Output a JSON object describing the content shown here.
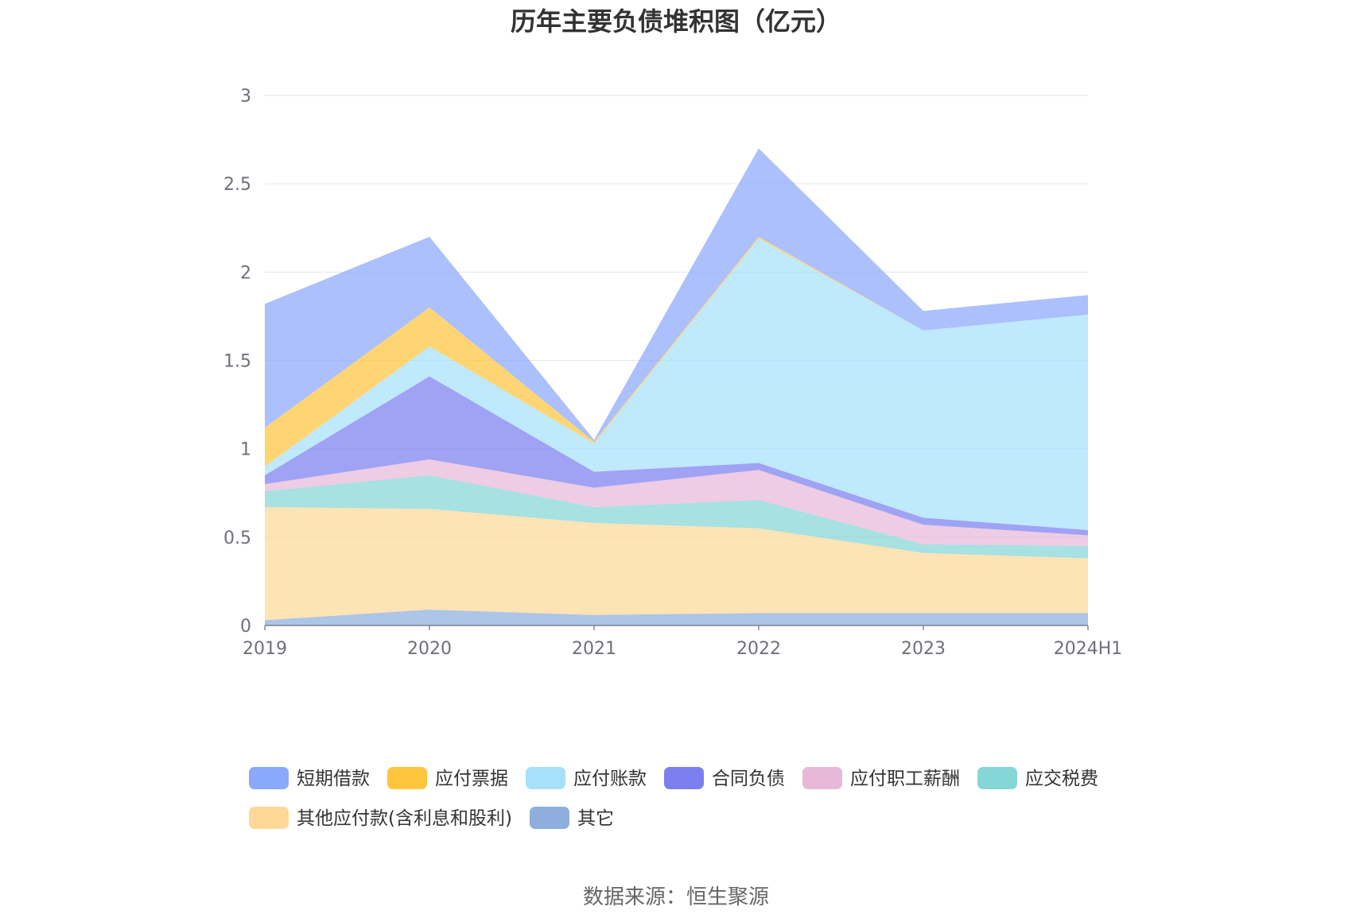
{
  "chart_data": {
    "type": "area",
    "stacked": true,
    "title": "历年主要负债堆积图（亿元）",
    "categories": [
      "2019",
      "2020",
      "2021",
      "2022",
      "2023",
      "2024H1"
    ],
    "ylim": [
      0,
      3
    ],
    "yticks": [
      "0",
      "0.5",
      "1",
      "1.5",
      "2",
      "2.5",
      "3"
    ],
    "grid": true,
    "legend_position": "bottom",
    "series": [
      {
        "name": "其它",
        "color": "#8eafde",
        "values": [
          0.03,
          0.09,
          0.06,
          0.07,
          0.07,
          0.07
        ]
      },
      {
        "name": "其他应付款(含利息和股利)",
        "color": "#fdd897",
        "values": [
          0.64,
          0.57,
          0.52,
          0.48,
          0.34,
          0.31
        ]
      },
      {
        "name": "应交税费",
        "color": "#85d6d6",
        "values": [
          0.09,
          0.19,
          0.09,
          0.16,
          0.05,
          0.07
        ]
      },
      {
        "name": "应付职工薪酬",
        "color": "#e8b8d8",
        "values": [
          0.04,
          0.09,
          0.11,
          0.17,
          0.11,
          0.06
        ]
      },
      {
        "name": "合同负债",
        "color": "#7b7ff0",
        "values": [
          0.05,
          0.47,
          0.09,
          0.04,
          0.04,
          0.03
        ]
      },
      {
        "name": "应付账款",
        "color": "#a6e0fb",
        "values": [
          0.05,
          0.17,
          0.16,
          1.27,
          1.06,
          1.22
        ]
      },
      {
        "name": "应付票据",
        "color": "#ffc53d",
        "values": [
          0.22,
          0.22,
          0.01,
          0.01,
          0,
          0
        ]
      },
      {
        "name": "短期借款",
        "color": "#8aa8fc",
        "values": [
          0.7,
          0.4,
          0.01,
          0.5,
          0.11,
          0.11
        ]
      }
    ],
    "legend_order": [
      "短期借款",
      "应付票据",
      "应付账款",
      "合同负债",
      "应付职工薪酬",
      "应交税费",
      "其他应付款(含利息和股利)",
      "其它"
    ],
    "source": "数据来源：恒生聚源"
  }
}
